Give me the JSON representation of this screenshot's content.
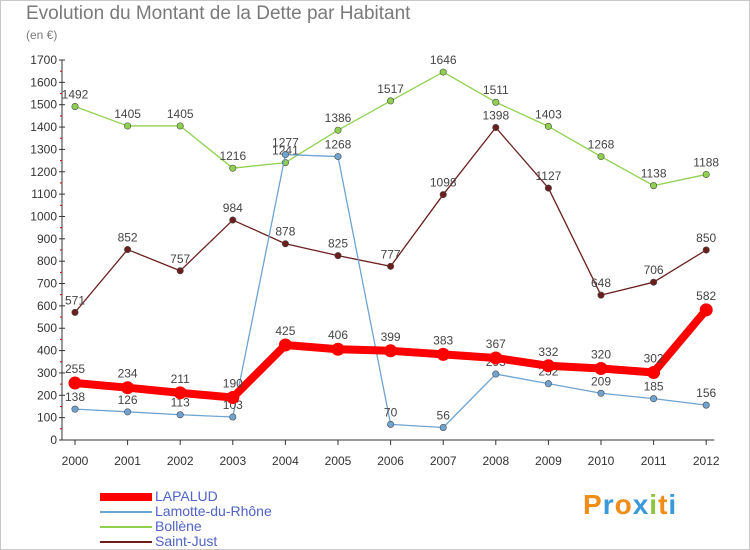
{
  "title": "Evolution du Montant de la Dette par Habitant",
  "unit": "(en €)",
  "logo": {
    "letters": [
      "P",
      "r",
      "o",
      "x",
      "i",
      "t",
      "i"
    ],
    "colors": [
      "#f08c1a",
      "#3a9ad9",
      "#f08c1a",
      "#3a9ad9",
      "#8cc63f",
      "#f08c1a",
      "#3a9ad9"
    ]
  },
  "chart_data": {
    "type": "line",
    "title": "Evolution du Montant de la Dette par Habitant",
    "ylabel": "(en €)",
    "xlabel": "",
    "x": [
      "2000",
      "2001",
      "2002",
      "2003",
      "2004",
      "2005",
      "2006",
      "2007",
      "2008",
      "2009",
      "2010",
      "2011",
      "2012"
    ],
    "ylim": [
      0,
      1700
    ],
    "yticks": [
      0,
      100,
      200,
      300,
      400,
      500,
      600,
      700,
      800,
      900,
      1000,
      1100,
      1200,
      1300,
      1400,
      1500,
      1600,
      1700
    ],
    "grid": false,
    "legend_position": "bottom-left",
    "series": [
      {
        "name": "Saint-Just",
        "color": "#6b1e1e",
        "values": [
          571,
          852,
          757,
          984,
          878,
          825,
          777,
          1098,
          1398,
          1127,
          648,
          706,
          850
        ]
      },
      {
        "name": "Bollène",
        "color": "#8fd14f",
        "values": [
          1492,
          1405,
          1405,
          1216,
          1241,
          1386,
          1517,
          1646,
          1511,
          1403,
          1268,
          1138,
          1188
        ]
      },
      {
        "name": "Lamotte-du-Rhône",
        "color": "#6fa3d0",
        "values": [
          138,
          126,
          113,
          103,
          1277,
          1268,
          70,
          56,
          295,
          252,
          209,
          185,
          156
        ]
      },
      {
        "name": "LAPALUD",
        "color": "#ff0000",
        "values": [
          255,
          234,
          211,
          190,
          425,
          406,
          399,
          383,
          367,
          332,
          320,
          302,
          582
        ]
      }
    ],
    "legend": [
      "LAPALUD",
      "Lamotte-du-Rhône",
      "Bollène",
      "Saint-Just"
    ]
  }
}
